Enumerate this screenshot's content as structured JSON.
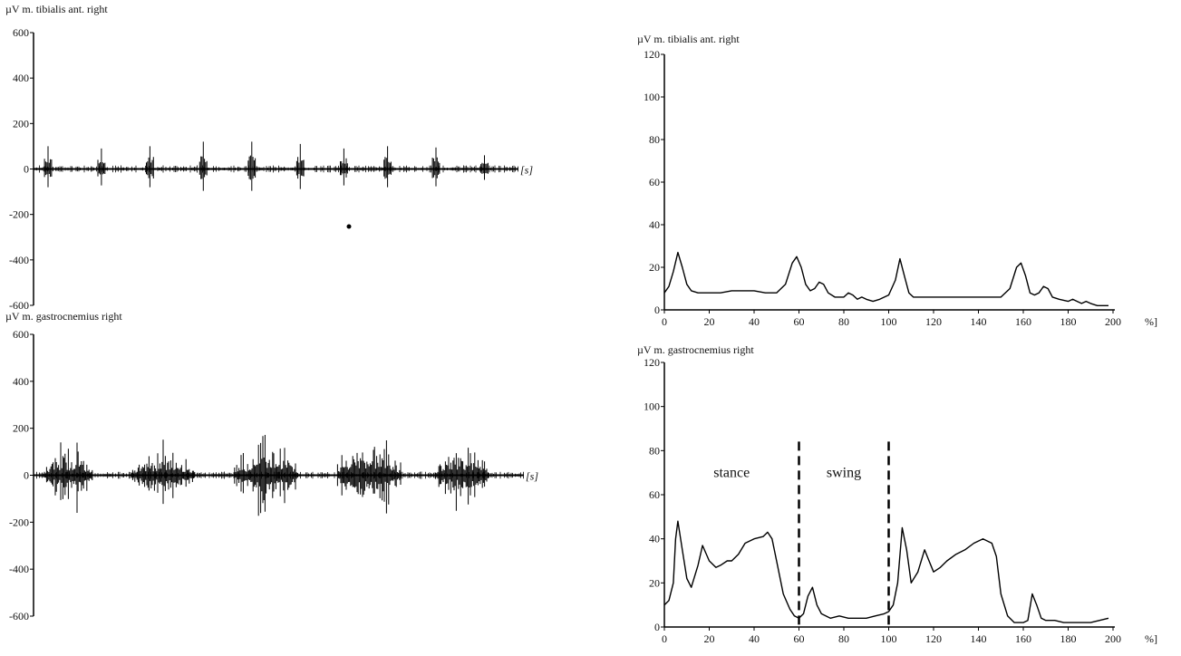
{
  "chart_data": [
    {
      "id": "raw-tibialis",
      "type": "line",
      "title": "µV m. tibialis ant. right",
      "x_unit_label": "[s]",
      "ylim": [
        -600,
        600
      ],
      "y_ticks": [
        600,
        400,
        200,
        0,
        -200,
        -400,
        -600
      ],
      "grid": false,
      "raw_emg": true,
      "bursts": [
        {
          "x": 0.03,
          "amp": 100
        },
        {
          "x": 0.14,
          "amp": 90
        },
        {
          "x": 0.24,
          "amp": 100
        },
        {
          "x": 0.35,
          "amp": 120
        },
        {
          "x": 0.45,
          "amp": 120
        },
        {
          "x": 0.55,
          "amp": 110
        },
        {
          "x": 0.64,
          "amp": 90
        },
        {
          "x": 0.73,
          "amp": 100
        },
        {
          "x": 0.83,
          "amp": 95
        },
        {
          "x": 0.93,
          "amp": 60
        }
      ]
    },
    {
      "id": "raw-gastrocnemius",
      "type": "line",
      "title": "µV m. gastrocnemius right",
      "x_unit_label": "[s]",
      "ylim": [
        -600,
        600
      ],
      "y_ticks": [
        600,
        400,
        200,
        0,
        -200,
        -400,
        -600
      ],
      "grid": false,
      "raw_emg": true,
      "bursts": [
        {
          "start": 0.02,
          "end": 0.12,
          "amp": 200
        },
        {
          "start": 0.2,
          "end": 0.33,
          "amp": 170
        },
        {
          "start": 0.41,
          "end": 0.54,
          "amp": 230
        },
        {
          "start": 0.62,
          "end": 0.75,
          "amp": 260
        },
        {
          "start": 0.82,
          "end": 0.93,
          "amp": 200
        }
      ]
    },
    {
      "id": "env-tibialis",
      "type": "line",
      "title": "µV m. tibialis ant. right",
      "x_unit_label": "%]",
      "xlim": [
        0,
        200
      ],
      "x_ticks": [
        0,
        20,
        40,
        60,
        80,
        100,
        120,
        140,
        160,
        180,
        200
      ],
      "ylim": [
        0,
        120
      ],
      "y_ticks": [
        120,
        100,
        80,
        60,
        40,
        20,
        0
      ],
      "grid": false,
      "series": [
        {
          "x": [
            0,
            2,
            4,
            6,
            8,
            10,
            12,
            15,
            20,
            25,
            30,
            35,
            40,
            45,
            50,
            54,
            57,
            59,
            61,
            63,
            65,
            67,
            69,
            71,
            73,
            76,
            80,
            82,
            84,
            86,
            88,
            90,
            93,
            96,
            100,
            103,
            105,
            107,
            109,
            111,
            114,
            120,
            130,
            140,
            150,
            154,
            157,
            159,
            161,
            163,
            165,
            167,
            169,
            171,
            173,
            176,
            180,
            182,
            184,
            186,
            188,
            190,
            193,
            196,
            198
          ],
          "y": [
            8,
            11,
            18,
            27,
            20,
            12,
            9,
            8,
            8,
            8,
            9,
            9,
            9,
            8,
            8,
            12,
            22,
            25,
            20,
            12,
            9,
            10,
            13,
            12,
            8,
            6,
            6,
            8,
            7,
            5,
            6,
            5,
            4,
            5,
            7,
            14,
            24,
            16,
            8,
            6,
            6,
            6,
            6,
            6,
            6,
            10,
            20,
            22,
            16,
            8,
            7,
            8,
            11,
            10,
            6,
            5,
            4,
            5,
            4,
            3,
            4,
            3,
            2,
            2,
            2
          ]
        }
      ]
    },
    {
      "id": "env-gastrocnemius",
      "type": "line",
      "title": "µV m. gastrocnemius right",
      "x_unit_label": "%]",
      "xlim": [
        0,
        200
      ],
      "x_ticks": [
        0,
        20,
        40,
        60,
        80,
        100,
        120,
        140,
        160,
        180,
        200
      ],
      "ylim": [
        0,
        120
      ],
      "y_ticks": [
        120,
        100,
        80,
        60,
        40,
        20,
        0
      ],
      "grid": false,
      "annotations": [
        {
          "text": "stance",
          "x": 30,
          "y": 68
        },
        {
          "text": "swing",
          "x": 80,
          "y": 68
        }
      ],
      "phase_lines": [
        60,
        100
      ],
      "series": [
        {
          "x": [
            0,
            2,
            4,
            5,
            6,
            8,
            10,
            12,
            15,
            17,
            20,
            23,
            25,
            28,
            30,
            33,
            36,
            40,
            44,
            46,
            48,
            50,
            53,
            56,
            58,
            60,
            62,
            64,
            66,
            68,
            70,
            74,
            78,
            82,
            86,
            90,
            94,
            98,
            100,
            102,
            104,
            106,
            108,
            110,
            113,
            116,
            118,
            120,
            123,
            126,
            130,
            134,
            138,
            142,
            146,
            148,
            150,
            153,
            156,
            158,
            160,
            162,
            164,
            166,
            168,
            170,
            174,
            178,
            182,
            186,
            190,
            194,
            198
          ],
          "y": [
            10,
            12,
            20,
            40,
            48,
            35,
            22,
            18,
            28,
            37,
            30,
            27,
            28,
            30,
            30,
            33,
            38,
            40,
            41,
            43,
            40,
            30,
            15,
            8,
            5,
            4,
            6,
            14,
            18,
            10,
            6,
            4,
            5,
            4,
            4,
            4,
            5,
            6,
            7,
            10,
            20,
            45,
            35,
            20,
            25,
            35,
            30,
            25,
            27,
            30,
            33,
            35,
            38,
            40,
            38,
            32,
            15,
            5,
            2,
            2,
            2,
            3,
            15,
            10,
            4,
            3,
            3,
            2,
            2,
            2,
            2,
            3,
            4
          ]
        }
      ]
    }
  ]
}
